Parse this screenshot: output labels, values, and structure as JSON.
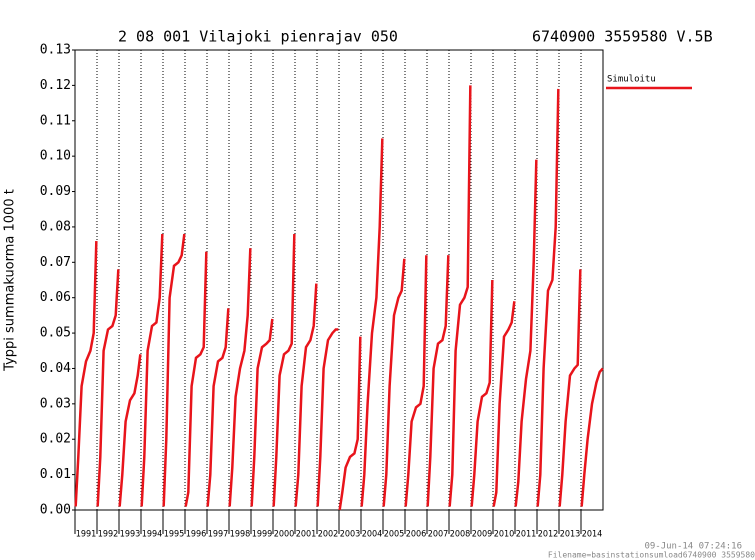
{
  "chart_data": {
    "type": "line",
    "title": "2 08 001 Vilajoki pienrajav 050",
    "subtitle": "6740900 3559580 V.5B",
    "y_label": "Typpi summakuorma 1000 t",
    "footer": [
      "09-Jun-14 07:24:16",
      "Filename=basinstationsumload6740900 3559580"
    ],
    "legend": "upper right",
    "grid": true,
    "xlim": [
      1991,
      2015
    ],
    "xticks": [
      1991,
      1992,
      1993,
      1994,
      1995,
      1996,
      1997,
      1998,
      1999,
      2000,
      2001,
      2002,
      2003,
      2004,
      2005,
      2006,
      2007,
      2008,
      2009,
      2010,
      2011,
      2012,
      2013,
      2014
    ],
    "ylim": [
      0,
      0.13
    ],
    "yticks": [
      {
        "value": 0,
        "label": "0.00"
      },
      0.01,
      0.02,
      0.03,
      0.04,
      0.05,
      0.06,
      0.07,
      0.08,
      0.09,
      {
        "value": 0.1,
        "label": "0.10"
      },
      0.11,
      0.12,
      0.13
    ],
    "series": [
      {
        "name": "Simuloitu",
        "color": "#e8141b",
        "x": [
          1991.03,
          1991.15,
          1991.3,
          1991.5,
          1991.7,
          1991.85,
          1991.97,
          null,
          1992.03,
          1992.15,
          1992.3,
          1992.5,
          1992.7,
          1992.85,
          1992.97,
          null,
          1993.03,
          1993.15,
          1993.3,
          1993.5,
          1993.7,
          1993.85,
          1993.97,
          null,
          1994.03,
          1994.15,
          1994.3,
          1994.5,
          1994.7,
          1994.85,
          1994.97,
          null,
          1995.03,
          1995.15,
          1995.3,
          1995.5,
          1995.7,
          1995.85,
          1995.97,
          null,
          1996.03,
          1996.15,
          1996.3,
          1996.5,
          1996.7,
          1996.85,
          1996.97,
          null,
          1997.03,
          1997.15,
          1997.3,
          1997.5,
          1997.7,
          1997.85,
          1997.97,
          null,
          1998.03,
          1998.15,
          1998.3,
          1998.5,
          1998.7,
          1998.85,
          1998.97,
          null,
          1999.03,
          1999.15,
          1999.3,
          1999.5,
          1999.7,
          1999.85,
          1999.97,
          null,
          2000.03,
          2000.15,
          2000.3,
          2000.5,
          2000.7,
          2000.85,
          2000.97,
          null,
          2001.03,
          2001.15,
          2001.3,
          2001.5,
          2001.7,
          2001.85,
          2001.97,
          null,
          2002.03,
          2002.15,
          2002.3,
          2002.5,
          2002.7,
          2002.85,
          2002.97,
          null,
          2003.03,
          2003.15,
          2003.3,
          2003.5,
          2003.7,
          2003.85,
          2003.97,
          null,
          2004.03,
          2004.15,
          2004.3,
          2004.5,
          2004.7,
          2004.85,
          2004.97,
          null,
          2005.03,
          2005.15,
          2005.3,
          2005.5,
          2005.7,
          2005.85,
          2005.97,
          null,
          2006.03,
          2006.15,
          2006.3,
          2006.5,
          2006.7,
          2006.85,
          2006.97,
          null,
          2007.03,
          2007.15,
          2007.3,
          2007.5,
          2007.7,
          2007.85,
          2007.97,
          null,
          2008.03,
          2008.15,
          2008.3,
          2008.5,
          2008.7,
          2008.85,
          2008.97,
          null,
          2009.03,
          2009.15,
          2009.3,
          2009.5,
          2009.7,
          2009.85,
          2009.97,
          null,
          2010.03,
          2010.15,
          2010.3,
          2010.5,
          2010.7,
          2010.85,
          2010.97,
          null,
          2011.03,
          2011.15,
          2011.3,
          2011.5,
          2011.7,
          2011.85,
          2011.97,
          null,
          2012.03,
          2012.15,
          2012.3,
          2012.5,
          2012.7,
          2012.85,
          2012.97,
          null,
          2013.03,
          2013.15,
          2013.3,
          2013.5,
          2013.7,
          2013.85,
          2013.97,
          null,
          2014.03,
          2014.15,
          2014.3,
          2014.5,
          2014.7,
          2014.85,
          2014.99
        ],
        "values": [
          0.001,
          0.015,
          0.035,
          0.042,
          0.045,
          0.05,
          0.076,
          null,
          0.001,
          0.015,
          0.045,
          0.051,
          0.052,
          0.055,
          0.068,
          null,
          0.001,
          0.01,
          0.025,
          0.031,
          0.033,
          0.038,
          0.044,
          null,
          0.001,
          0.015,
          0.045,
          0.052,
          0.053,
          0.06,
          0.078,
          null,
          0.001,
          0.02,
          0.06,
          0.069,
          0.07,
          0.072,
          0.078,
          null,
          0.001,
          0.005,
          0.035,
          0.043,
          0.044,
          0.046,
          0.073,
          null,
          0.001,
          0.01,
          0.035,
          0.042,
          0.043,
          0.046,
          0.057,
          null,
          0.001,
          0.012,
          0.032,
          0.04,
          0.045,
          0.055,
          0.074,
          null,
          0.001,
          0.015,
          0.04,
          0.046,
          0.047,
          0.048,
          0.054,
          null,
          0.001,
          0.015,
          0.038,
          0.044,
          0.045,
          0.047,
          0.078,
          null,
          0.001,
          0.01,
          0.035,
          0.046,
          0.048,
          0.052,
          0.064,
          null,
          0.001,
          0.015,
          0.04,
          0.048,
          0.05,
          0.051,
          0.051,
          null,
          0.0,
          0.005,
          0.012,
          0.015,
          0.016,
          0.02,
          0.049,
          null,
          0.001,
          0.01,
          0.03,
          0.05,
          0.06,
          0.08,
          0.105,
          null,
          0.001,
          0.01,
          0.035,
          0.055,
          0.06,
          0.062,
          0.071,
          null,
          0.001,
          0.01,
          0.025,
          0.029,
          0.03,
          0.035,
          0.072,
          null,
          0.001,
          0.015,
          0.04,
          0.047,
          0.048,
          0.052,
          0.072,
          null,
          0.001,
          0.01,
          0.045,
          0.058,
          0.06,
          0.063,
          0.12,
          null,
          0.001,
          0.01,
          0.025,
          0.032,
          0.033,
          0.036,
          0.065,
          null,
          0.001,
          0.005,
          0.03,
          0.049,
          0.051,
          0.053,
          0.059,
          null,
          0.001,
          0.008,
          0.025,
          0.037,
          0.045,
          0.07,
          0.099,
          null,
          0.001,
          0.01,
          0.04,
          0.062,
          0.065,
          0.08,
          0.119,
          null,
          0.001,
          0.01,
          0.025,
          0.038,
          0.04,
          0.041,
          0.068,
          null,
          0.001,
          0.01,
          0.02,
          0.03,
          0.036,
          0.039,
          0.04
        ]
      }
    ]
  }
}
